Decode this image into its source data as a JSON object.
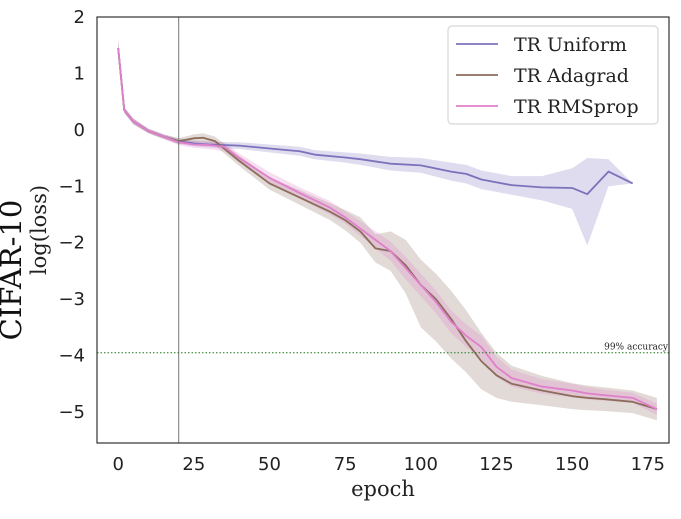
{
  "chart_data": {
    "type": "line",
    "side_title": "CIFAR-10",
    "xlabel": "epoch",
    "ylabel": "log(loss)",
    "xlim": [
      -7,
      182
    ],
    "ylim": [
      -5.55,
      2
    ],
    "xticks": [
      0,
      25,
      50,
      75,
      100,
      125,
      150,
      175
    ],
    "yticks": [
      2,
      1,
      0,
      -1,
      -2,
      -3,
      -4,
      -5
    ],
    "ytick_labels": [
      "2",
      "1",
      "0",
      "−1",
      "−2",
      "−3",
      "−4",
      "−5"
    ],
    "grid": false,
    "legend_position": "top-right",
    "vline": {
      "x": 20
    },
    "hline": {
      "y": -3.95,
      "label": "99% accuracy"
    },
    "series": [
      {
        "name": "TR Uniform",
        "color": "#7b72bc",
        "x": [
          0,
          2,
          5,
          10,
          15,
          20,
          25,
          30,
          40,
          50,
          60,
          65,
          75,
          80,
          90,
          100,
          110,
          115,
          120,
          130,
          140,
          150,
          155,
          162,
          170
        ],
        "y": [
          1.45,
          0.35,
          0.15,
          -0.02,
          -0.12,
          -0.2,
          -0.24,
          -0.26,
          -0.28,
          -0.33,
          -0.38,
          -0.44,
          -0.49,
          -0.52,
          -0.6,
          -0.63,
          -0.74,
          -0.78,
          -0.88,
          -0.98,
          -1.02,
          -1.03,
          -1.14,
          -0.74,
          -0.95
        ],
        "lower": [
          1.3,
          0.3,
          0.1,
          -0.06,
          -0.16,
          -0.25,
          -0.29,
          -0.31,
          -0.34,
          -0.4,
          -0.46,
          -0.52,
          -0.58,
          -0.62,
          -0.72,
          -0.76,
          -0.9,
          -0.95,
          -1.05,
          -1.15,
          -1.25,
          -1.4,
          -2.05,
          -1.0,
          -0.95
        ],
        "upper": [
          1.6,
          0.4,
          0.2,
          0.02,
          -0.08,
          -0.15,
          -0.19,
          -0.21,
          -0.22,
          -0.26,
          -0.3,
          -0.36,
          -0.4,
          -0.42,
          -0.48,
          -0.5,
          -0.58,
          -0.62,
          -0.72,
          -0.82,
          -0.82,
          -0.68,
          -0.5,
          -0.52,
          -0.95
        ]
      },
      {
        "name": "TR Adagrad",
        "color": "#8c6d5c",
        "x": [
          0,
          2,
          5,
          10,
          15,
          20,
          25,
          28,
          32,
          40,
          50,
          60,
          70,
          75,
          80,
          85,
          90,
          95,
          100,
          105,
          110,
          115,
          120,
          125,
          130,
          140,
          150,
          155,
          160,
          170,
          178
        ],
        "y": [
          1.45,
          0.35,
          0.15,
          -0.02,
          -0.12,
          -0.2,
          -0.15,
          -0.14,
          -0.2,
          -0.55,
          -0.95,
          -1.2,
          -1.45,
          -1.6,
          -1.8,
          -2.1,
          -2.15,
          -2.4,
          -2.75,
          -3.0,
          -3.35,
          -3.75,
          -4.1,
          -4.35,
          -4.5,
          -4.62,
          -4.72,
          -4.75,
          -4.77,
          -4.82,
          -4.95
        ],
        "lower": [
          1.3,
          0.3,
          0.1,
          -0.06,
          -0.16,
          -0.25,
          -0.22,
          -0.22,
          -0.28,
          -0.64,
          -1.06,
          -1.33,
          -1.6,
          -1.78,
          -2.0,
          -2.35,
          -2.5,
          -2.9,
          -3.5,
          -3.75,
          -4.05,
          -4.3,
          -4.6,
          -4.75,
          -4.82,
          -4.88,
          -4.95,
          -4.97,
          -4.98,
          -5.02,
          -5.15
        ],
        "upper": [
          1.6,
          0.4,
          0.2,
          0.02,
          -0.08,
          -0.15,
          -0.08,
          -0.06,
          -0.12,
          -0.46,
          -0.84,
          -1.07,
          -1.3,
          -1.42,
          -1.55,
          -1.85,
          -1.8,
          -1.95,
          -2.3,
          -2.55,
          -2.85,
          -3.2,
          -3.6,
          -3.95,
          -4.18,
          -4.36,
          -4.49,
          -4.53,
          -4.56,
          -4.62,
          -4.75
        ]
      },
      {
        "name": "TR RMSprop",
        "color": "#e07fcb",
        "x": [
          0,
          2,
          5,
          10,
          15,
          20,
          25,
          30,
          35,
          40,
          50,
          60,
          70,
          75,
          80,
          85,
          90,
          95,
          100,
          105,
          110,
          115,
          120,
          125,
          130,
          140,
          150,
          155,
          160,
          170,
          178
        ],
        "y": [
          1.45,
          0.35,
          0.15,
          -0.02,
          -0.12,
          -0.22,
          -0.26,
          -0.27,
          -0.3,
          -0.5,
          -0.85,
          -1.12,
          -1.38,
          -1.55,
          -1.75,
          -1.95,
          -2.15,
          -2.45,
          -2.75,
          -3.05,
          -3.4,
          -3.65,
          -3.85,
          -4.2,
          -4.4,
          -4.55,
          -4.62,
          -4.67,
          -4.7,
          -4.75,
          -4.95
        ],
        "lower": [
          1.3,
          0.3,
          0.1,
          -0.06,
          -0.16,
          -0.27,
          -0.32,
          -0.34,
          -0.38,
          -0.58,
          -0.95,
          -1.22,
          -1.5,
          -1.66,
          -1.88,
          -2.1,
          -2.32,
          -2.65,
          -2.95,
          -3.25,
          -3.6,
          -3.85,
          -4.05,
          -4.38,
          -4.55,
          -4.68,
          -4.74,
          -4.78,
          -4.8,
          -4.84,
          -5.05
        ],
        "upper": [
          1.6,
          0.4,
          0.2,
          0.02,
          -0.08,
          -0.17,
          -0.2,
          -0.2,
          -0.22,
          -0.42,
          -0.75,
          -1.02,
          -1.26,
          -1.44,
          -1.62,
          -1.8,
          -1.98,
          -2.25,
          -2.55,
          -2.85,
          -3.2,
          -3.45,
          -3.65,
          -4.02,
          -4.25,
          -4.42,
          -4.5,
          -4.56,
          -4.6,
          -4.66,
          -4.85
        ]
      }
    ]
  }
}
